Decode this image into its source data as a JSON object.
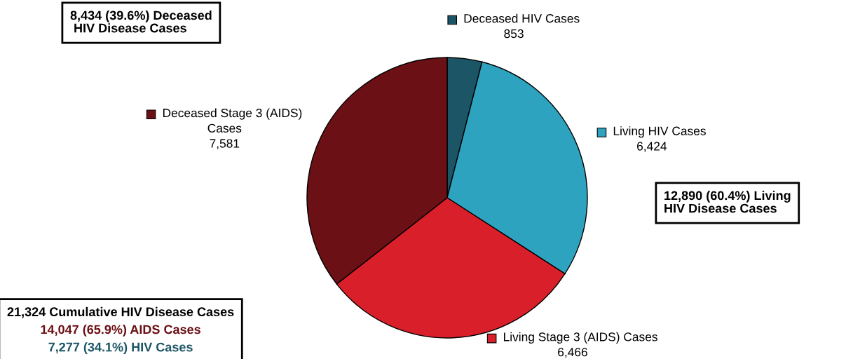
{
  "chart_data": {
    "type": "pie",
    "categories": [
      "Deceased HIV Cases",
      "Living HIV Cases",
      "Living Stage 3 (AIDS) Cases",
      "Deceased Stage 3 (AIDS)\nCases"
    ],
    "values": [
      853,
      6424,
      6466,
      7581
    ],
    "value_labels": [
      "853",
      "6,424",
      "6,466",
      "7,581"
    ],
    "colors": [
      "#1b5566",
      "#2ea3bf",
      "#d9202a",
      "#6b1015"
    ],
    "legend": "top left",
    "annotations": [
      "8,434 (39.6%) Deceased\n HIV Disease Cases",
      "12,890 (60.4%) Living\nHIV Disease Cases",
      "21,324 Cumulative HIV Disease Cases",
      "14,047 (65.9%) AIDS Cases",
      "7,277 (34.1%) HIV Cases"
    ]
  }
}
